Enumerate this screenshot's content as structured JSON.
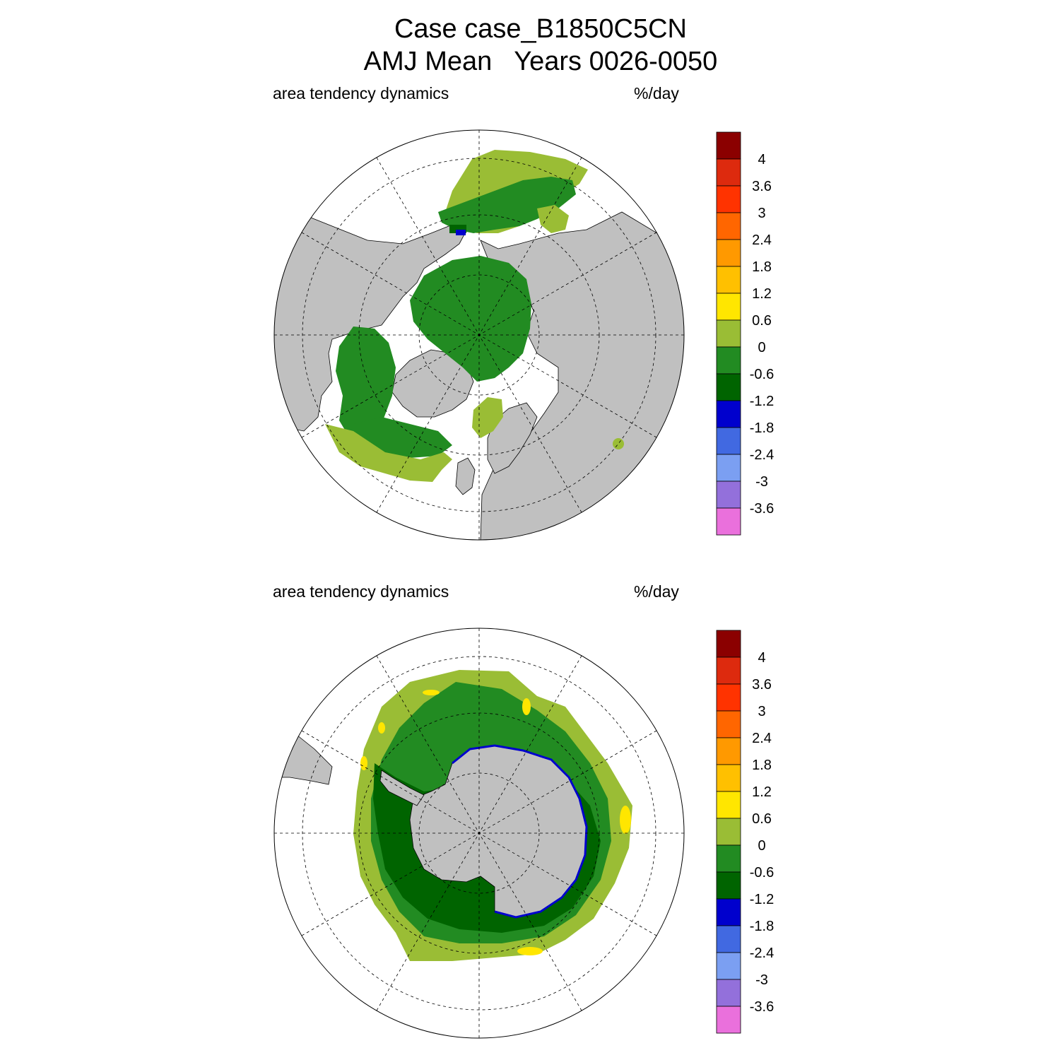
{
  "title": {
    "line1": "Case case_B1850C5CN",
    "line2": "AMJ Mean   Years 0026-0050"
  },
  "panels": [
    {
      "left_label": "area tendency dynamics",
      "right_label": "%/day",
      "hemisphere": "north"
    },
    {
      "left_label": "area tendency dynamics",
      "right_label": "%/day",
      "hemisphere": "south"
    }
  ],
  "colorbar": {
    "labels": [
      "4",
      "3.6",
      "3",
      "2.4",
      "1.8",
      "1.2",
      "0.6",
      "0",
      "-0.6",
      "-1.2",
      "-1.8",
      "-2.4",
      "-3",
      "-3.6"
    ],
    "colors": [
      "#8b0000",
      "#dd2a0e",
      "#ff3300",
      "#ff6600",
      "#ff9900",
      "#ffc000",
      "#ffe600",
      "#9abd35",
      "#228b22",
      "#006400",
      "#0000cd",
      "#4169e1",
      "#7b9ff2",
      "#9370db",
      "#ea70dc"
    ]
  },
  "colors": {
    "land": "#c0c0c0",
    "ocean": "#ffffff",
    "light_green": "#9abd35",
    "green": "#228b22",
    "dark_green": "#006400",
    "blue": "#0000cd",
    "yellow": "#ffe600"
  }
}
